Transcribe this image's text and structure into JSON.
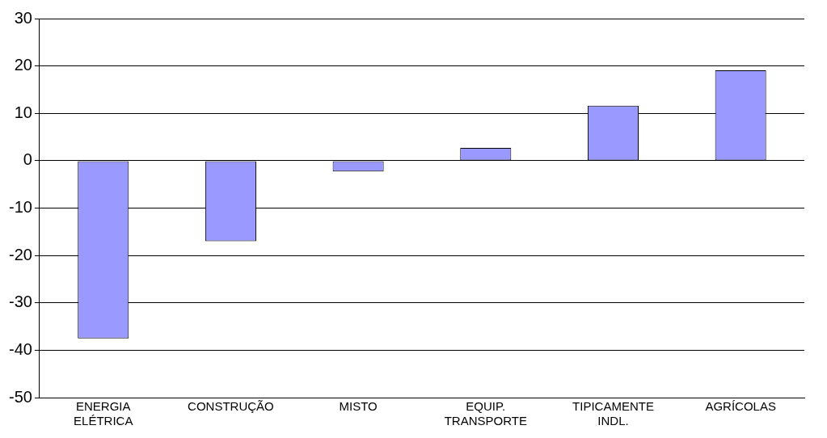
{
  "chart_data": {
    "type": "bar",
    "categories": [
      "ENERGIA ELÉTRICA",
      "CONSTRUÇÃO",
      "MISTO",
      "EQUIP. TRANSPORTE",
      "TIPICAMENTE INDL.",
      "AGRÍCOLAS"
    ],
    "values": [
      -37.5,
      -17,
      -2.3,
      2.7,
      11.6,
      19.1
    ],
    "color": "#9999ff",
    "ylim": [
      -50,
      30
    ],
    "yticks": [
      -50,
      -40,
      -30,
      -20,
      -10,
      0,
      10,
      20,
      30
    ],
    "grid": "y"
  }
}
